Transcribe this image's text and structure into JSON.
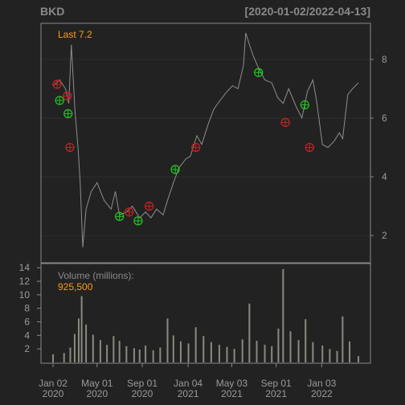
{
  "header": {
    "symbol": "BKD",
    "date_range": "[2020-01-02/2022-04-13]"
  },
  "colors": {
    "background": "#222222",
    "panel_border": "#888888",
    "price_line": "#8e8e8e",
    "volume_bar": "#8a8a80",
    "buy_marker": "#22c022",
    "sell_marker": "#c02222",
    "highlight_text": "#ff9a1a"
  },
  "chart_data": [
    {
      "type": "line",
      "panel": "price",
      "last_label": "Last 7.2",
      "ylim": [
        1.1,
        9.2
      ],
      "y_ticks": [
        2,
        4,
        6,
        8
      ],
      "grid": true,
      "x_ticks": [
        {
          "date": "2020-01-02",
          "line1": "Jan 02",
          "line2": "2020"
        },
        {
          "date": "2020-05-01",
          "line1": "May 01",
          "line2": "2020"
        },
        {
          "date": "2020-09-01",
          "line1": "Sep 01",
          "line2": "2020"
        },
        {
          "date": "2021-01-04",
          "line1": "Jan 04",
          "line2": "2021"
        },
        {
          "date": "2021-05-03",
          "line1": "May 03",
          "line2": "2021"
        },
        {
          "date": "2021-09-01",
          "line1": "Sep 01",
          "line2": "2021"
        },
        {
          "date": "2022-01-03",
          "line1": "Jan 03",
          "line2": "2022"
        }
      ],
      "series": [
        {
          "x": [
            "2020-01-02",
            "2020-01-20",
            "2020-02-05",
            "2020-02-14",
            "2020-02-21",
            "2020-03-02",
            "2020-03-10",
            "2020-03-16",
            "2020-03-23",
            "2020-04-01",
            "2020-04-15",
            "2020-05-01",
            "2020-05-20",
            "2020-06-08",
            "2020-06-20",
            "2020-07-01",
            "2020-07-20",
            "2020-08-05",
            "2020-08-25",
            "2020-09-10",
            "2020-09-25",
            "2020-10-10",
            "2020-10-28",
            "2020-11-09",
            "2020-11-25",
            "2020-12-10",
            "2020-12-28",
            "2021-01-10",
            "2021-01-28",
            "2021-02-10",
            "2021-02-28",
            "2021-03-15",
            "2021-04-01",
            "2021-04-20",
            "2021-05-05",
            "2021-05-20",
            "2021-06-04",
            "2021-06-10",
            "2021-06-20",
            "2021-07-01",
            "2021-07-15",
            "2021-08-01",
            "2021-08-20",
            "2021-09-05",
            "2021-09-20",
            "2021-10-05",
            "2021-10-25",
            "2021-11-10",
            "2021-11-25",
            "2021-12-10",
            "2021-12-20",
            "2022-01-05",
            "2022-01-20",
            "2022-02-05",
            "2022-02-20",
            "2022-03-01",
            "2022-03-15",
            "2022-03-28",
            "2022-04-13"
          ],
          "y": [
            7.1,
            7.3,
            7.0,
            6.5,
            8.5,
            6.2,
            5.0,
            3.8,
            1.6,
            2.9,
            3.5,
            3.8,
            3.2,
            2.9,
            3.5,
            2.7,
            2.8,
            3.0,
            2.6,
            2.8,
            2.6,
            2.9,
            2.7,
            3.2,
            3.8,
            4.3,
            4.6,
            4.7,
            5.4,
            5.1,
            5.8,
            6.3,
            6.6,
            6.9,
            7.1,
            7.0,
            7.8,
            8.9,
            8.5,
            8.1,
            7.7,
            7.3,
            7.2,
            6.7,
            6.5,
            7.0,
            6.4,
            6.0,
            6.9,
            7.3,
            6.6,
            5.1,
            5.0,
            5.2,
            5.5,
            5.3,
            6.8,
            7.0,
            7.2
          ]
        }
      ],
      "markers": [
        {
          "date": "2020-01-13",
          "price": 7.15,
          "type": "sell"
        },
        {
          "date": "2020-01-20",
          "price": 6.6,
          "type": "buy"
        },
        {
          "date": "2020-02-10",
          "price": 6.75,
          "type": "sell"
        },
        {
          "date": "2020-02-12",
          "price": 6.15,
          "type": "buy"
        },
        {
          "date": "2020-02-17",
          "price": 5.0,
          "type": "sell"
        },
        {
          "date": "2020-07-01",
          "price": 2.65,
          "type": "buy"
        },
        {
          "date": "2020-07-27",
          "price": 2.8,
          "type": "sell"
        },
        {
          "date": "2020-08-21",
          "price": 2.5,
          "type": "buy"
        },
        {
          "date": "2020-09-20",
          "price": 3.0,
          "type": "sell"
        },
        {
          "date": "2020-11-30",
          "price": 4.25,
          "type": "buy"
        },
        {
          "date": "2021-01-25",
          "price": 5.0,
          "type": "sell"
        },
        {
          "date": "2021-07-15",
          "price": 7.55,
          "type": "buy"
        },
        {
          "date": "2021-09-26",
          "price": 5.85,
          "type": "sell"
        },
        {
          "date": "2021-11-18",
          "price": 6.45,
          "type": "buy"
        },
        {
          "date": "2021-12-01",
          "price": 5.0,
          "type": "sell"
        }
      ]
    },
    {
      "type": "bar",
      "panel": "volume",
      "label": "Volume (millions):",
      "last_value": "925,500",
      "ylim": [
        0,
        14.5
      ],
      "y_ticks": [
        2,
        4,
        6,
        8,
        10,
        12,
        14
      ],
      "x": [
        "2020-01-02",
        "2020-02-01",
        "2020-02-18",
        "2020-03-01",
        "2020-03-12",
        "2020-03-20",
        "2020-04-01",
        "2020-04-20",
        "2020-05-10",
        "2020-05-28",
        "2020-06-15",
        "2020-07-01",
        "2020-07-20",
        "2020-08-10",
        "2020-08-25",
        "2020-09-10",
        "2020-10-01",
        "2020-10-20",
        "2020-11-09",
        "2020-11-25",
        "2020-12-15",
        "2021-01-05",
        "2021-01-25",
        "2021-02-15",
        "2021-03-08",
        "2021-03-30",
        "2021-04-20",
        "2021-05-10",
        "2021-06-01",
        "2021-06-20",
        "2021-07-10",
        "2021-08-01",
        "2021-08-20",
        "2021-09-07",
        "2021-09-20",
        "2021-10-10",
        "2021-11-01",
        "2021-11-20",
        "2021-12-10",
        "2022-01-05",
        "2022-01-25",
        "2022-02-14",
        "2022-03-01",
        "2022-03-20",
        "2022-04-13"
      ],
      "values": [
        1.2,
        1.4,
        2.2,
        4.2,
        6.5,
        9.8,
        5.6,
        4.1,
        3.3,
        2.6,
        3.9,
        3.2,
        2.4,
        2.1,
        1.9,
        2.5,
        1.8,
        2.2,
        6.5,
        4.0,
        3.1,
        2.8,
        5.2,
        3.9,
        3.0,
        2.6,
        2.3,
        2.0,
        3.4,
        8.7,
        3.2,
        2.6,
        2.4,
        5.0,
        13.8,
        4.6,
        3.3,
        6.4,
        3.0,
        2.5,
        2.0,
        1.7,
        6.8,
        3.1,
        0.93
      ]
    }
  ]
}
